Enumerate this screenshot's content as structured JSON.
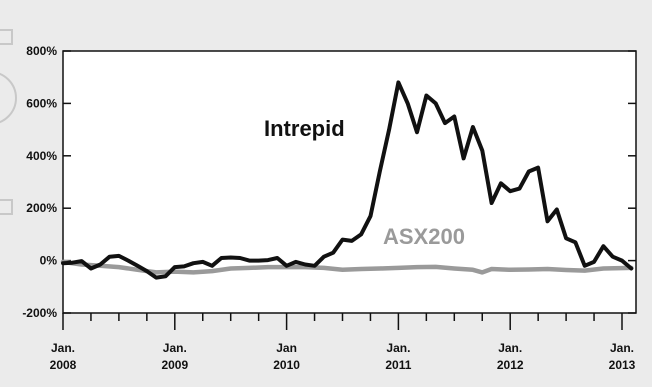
{
  "chart_data": {
    "type": "line",
    "ylim": [
      -200,
      800
    ],
    "y_ticks": [
      -200,
      0,
      200,
      400,
      600,
      800
    ],
    "y_tick_labels": [
      "-200%",
      "0%",
      "200%",
      "400%",
      "600%",
      "800%"
    ],
    "x_range": [
      "2008-01",
      "2013-01"
    ],
    "x_tick_labels": [
      {
        "month": "Jan.",
        "year": "2008"
      },
      {
        "month": "Jan.",
        "year": "2009"
      },
      {
        "month": "Jan",
        "year": "2010"
      },
      {
        "month": "Jan.",
        "year": "2011"
      },
      {
        "month": "Jan.",
        "year": "2012"
      },
      {
        "month": "Jan.",
        "year": "2013"
      }
    ],
    "grid": false,
    "series": [
      {
        "name": "Intrepid",
        "color": "#111111",
        "points": [
          [
            "2008-01",
            -10
          ],
          [
            "2008-02",
            -8
          ],
          [
            "2008-03",
            -2
          ],
          [
            "2008-04",
            -30
          ],
          [
            "2008-05",
            -15
          ],
          [
            "2008-06",
            15
          ],
          [
            "2008-07",
            18
          ],
          [
            "2008-08",
            0
          ],
          [
            "2008-09",
            -20
          ],
          [
            "2008-10",
            -40
          ],
          [
            "2008-11",
            -65
          ],
          [
            "2008-12",
            -60
          ],
          [
            "2009-01",
            -25
          ],
          [
            "2009-02",
            -22
          ],
          [
            "2009-03",
            -10
          ],
          [
            "2009-04",
            -5
          ],
          [
            "2009-05",
            -20
          ],
          [
            "2009-06",
            10
          ],
          [
            "2009-07",
            12
          ],
          [
            "2009-08",
            10
          ],
          [
            "2009-09",
            0
          ],
          [
            "2009-10",
            0
          ],
          [
            "2009-11",
            2
          ],
          [
            "2009-12",
            10
          ],
          [
            "2010-01",
            -20
          ],
          [
            "2010-02",
            -5
          ],
          [
            "2010-03",
            -15
          ],
          [
            "2010-04",
            -20
          ],
          [
            "2010-05",
            15
          ],
          [
            "2010-06",
            30
          ],
          [
            "2010-07",
            80
          ],
          [
            "2010-08",
            75
          ],
          [
            "2010-09",
            100
          ],
          [
            "2010-10",
            170
          ],
          [
            "2010-11",
            340
          ],
          [
            "2010-12",
            500
          ],
          [
            "2011-01",
            680
          ],
          [
            "2011-02",
            600
          ],
          [
            "2011-03",
            490
          ],
          [
            "2011-04",
            630
          ],
          [
            "2011-05",
            600
          ],
          [
            "2011-06",
            525
          ],
          [
            "2011-07",
            550
          ],
          [
            "2011-08",
            390
          ],
          [
            "2011-09",
            510
          ],
          [
            "2011-10",
            420
          ],
          [
            "2011-11",
            220
          ],
          [
            "2011-12",
            295
          ],
          [
            "2012-01",
            265
          ],
          [
            "2012-02",
            275
          ],
          [
            "2012-03",
            340
          ],
          [
            "2012-04",
            355
          ],
          [
            "2012-05",
            150
          ],
          [
            "2012-06",
            195
          ],
          [
            "2012-07",
            85
          ],
          [
            "2012-08",
            70
          ],
          [
            "2012-09",
            -20
          ],
          [
            "2012-10",
            -5
          ],
          [
            "2012-11",
            55
          ],
          [
            "2012-12",
            15
          ],
          [
            "2013-01",
            0
          ],
          [
            "2013-02",
            -30
          ]
        ]
      },
      {
        "name": "ASX200",
        "color": "#9a9a9a",
        "points": [
          [
            "2008-01",
            -5
          ],
          [
            "2008-03",
            -15
          ],
          [
            "2008-05",
            -20
          ],
          [
            "2008-07",
            -25
          ],
          [
            "2008-09",
            -35
          ],
          [
            "2008-11",
            -45
          ],
          [
            "2009-01",
            -42
          ],
          [
            "2009-03",
            -45
          ],
          [
            "2009-05",
            -40
          ],
          [
            "2009-07",
            -30
          ],
          [
            "2009-09",
            -28
          ],
          [
            "2009-11",
            -25
          ],
          [
            "2010-01",
            -25
          ],
          [
            "2010-03",
            -25
          ],
          [
            "2010-05",
            -28
          ],
          [
            "2010-07",
            -35
          ],
          [
            "2010-09",
            -32
          ],
          [
            "2010-11",
            -30
          ],
          [
            "2011-01",
            -28
          ],
          [
            "2011-03",
            -25
          ],
          [
            "2011-05",
            -24
          ],
          [
            "2011-07",
            -30
          ],
          [
            "2011-09",
            -35
          ],
          [
            "2011-10",
            -45
          ],
          [
            "2011-11",
            -32
          ],
          [
            "2012-01",
            -35
          ],
          [
            "2012-03",
            -34
          ],
          [
            "2012-05",
            -32
          ],
          [
            "2012-07",
            -36
          ],
          [
            "2012-09",
            -38
          ],
          [
            "2012-11",
            -30
          ],
          [
            "2013-02",
            -28
          ]
        ]
      }
    ]
  }
}
